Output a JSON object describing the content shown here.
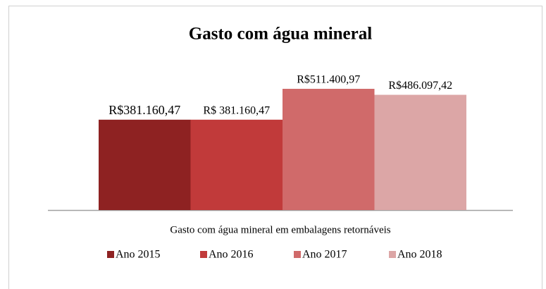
{
  "chart_data": {
    "type": "bar",
    "title": "Gasto com água mineral",
    "categories": [
      "Gasto com água mineral em embalagens retornáveis"
    ],
    "series": [
      {
        "name": "Ano 2015",
        "color": "#8e2222",
        "values": [
          381160.47
        ],
        "value_labels": [
          "R$381.160,47"
        ]
      },
      {
        "name": "Ano 2016",
        "color": "#c13a3a",
        "values": [
          381160.47
        ],
        "value_labels": [
          "R$ 381.160,47"
        ]
      },
      {
        "name": "Ano 2017",
        "color": "#d06a6a",
        "values": [
          511400.97
        ],
        "value_labels": [
          "R$511.400,97"
        ]
      },
      {
        "name": "Ano 2018",
        "color": "#dca6a6",
        "values": [
          486097.42
        ],
        "value_labels": [
          "R$486.097,42"
        ]
      }
    ]
  }
}
